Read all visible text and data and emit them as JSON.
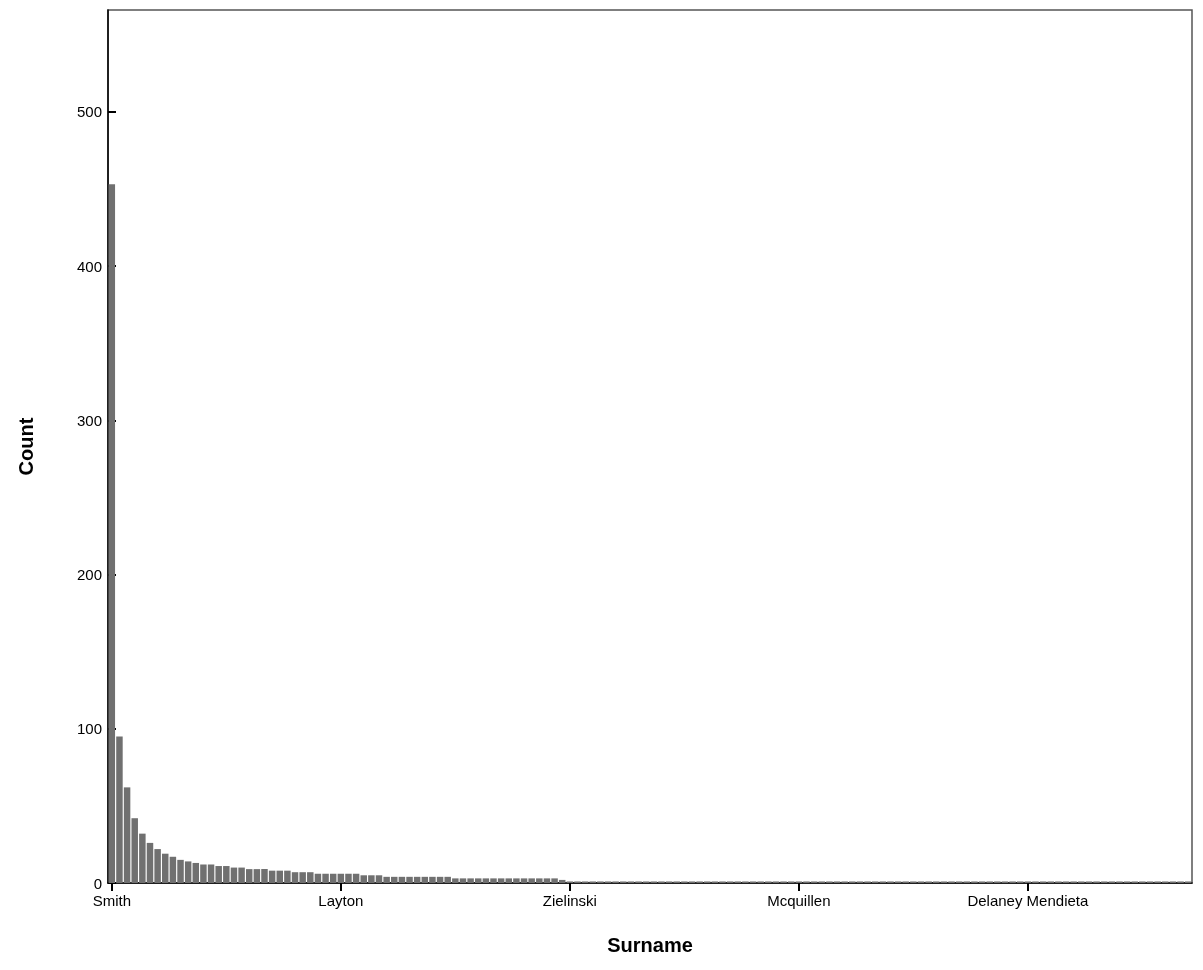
{
  "chart_data": {
    "type": "bar",
    "xlabel": "Surname",
    "ylabel": "Count",
    "color": "#707070",
    "categories": [
      "Smith",
      null,
      null,
      null,
      null,
      null,
      null,
      null,
      null,
      null,
      null,
      null,
      null,
      null,
      null,
      null,
      null,
      null,
      null,
      null,
      null,
      null,
      null,
      null,
      null,
      null,
      null,
      null,
      null,
      null,
      "Layton",
      null,
      null,
      null,
      null,
      null,
      null,
      null,
      null,
      null,
      null,
      null,
      null,
      null,
      null,
      null,
      null,
      null,
      null,
      null,
      null,
      null,
      null,
      null,
      null,
      null,
      null,
      null,
      null,
      null,
      "Zielinski",
      null,
      null,
      null,
      null,
      null,
      null,
      null,
      null,
      null,
      null,
      null,
      null,
      null,
      null,
      null,
      null,
      null,
      null,
      null,
      null,
      null,
      null,
      null,
      null,
      null,
      null,
      null,
      null,
      null,
      "Mcquillen",
      null,
      null,
      null,
      null,
      null,
      null,
      null,
      null,
      null,
      null,
      null,
      null,
      null,
      null,
      null,
      null,
      null,
      null,
      null,
      null,
      null,
      null,
      null,
      null,
      null,
      null,
      null,
      null,
      null,
      "Delaney Mendieta",
      null,
      null,
      null,
      null,
      null,
      null,
      null,
      null,
      null,
      null,
      null,
      null,
      null,
      null,
      null,
      null,
      null,
      null,
      null,
      null,
      null
    ],
    "values": [
      453,
      95,
      62,
      42,
      32,
      26,
      22,
      19,
      17,
      15,
      14,
      13,
      12,
      12,
      11,
      11,
      10,
      10,
      9,
      9,
      9,
      8,
      8,
      8,
      7,
      7,
      7,
      6,
      6,
      6,
      6,
      6,
      6,
      5,
      5,
      5,
      4,
      4,
      4,
      4,
      4,
      4,
      4,
      4,
      4,
      3,
      3,
      3,
      3,
      3,
      3,
      3,
      3,
      3,
      3,
      3,
      3,
      3,
      3,
      2,
      1,
      1,
      1,
      1,
      1,
      1,
      1,
      1,
      1,
      1,
      1,
      1,
      1,
      1,
      1,
      1,
      1,
      1,
      1,
      1,
      1,
      1,
      1,
      1,
      1,
      1,
      1,
      1,
      1,
      1,
      1,
      1,
      1,
      1,
      1,
      1,
      1,
      1,
      1,
      1,
      1,
      1,
      1,
      1,
      1,
      1,
      1,
      1,
      1,
      1,
      1,
      1,
      1,
      1,
      1,
      1,
      1,
      1,
      1,
      1,
      1,
      1,
      1,
      1,
      1,
      1,
      1,
      1,
      1,
      1,
      1,
      1,
      1,
      1,
      1,
      1,
      1,
      1,
      1,
      1,
      1,
      1
    ],
    "ylim": [
      0,
      566
    ],
    "yticks": [
      0,
      100,
      200,
      300,
      400,
      500
    ],
    "grid": false
  }
}
